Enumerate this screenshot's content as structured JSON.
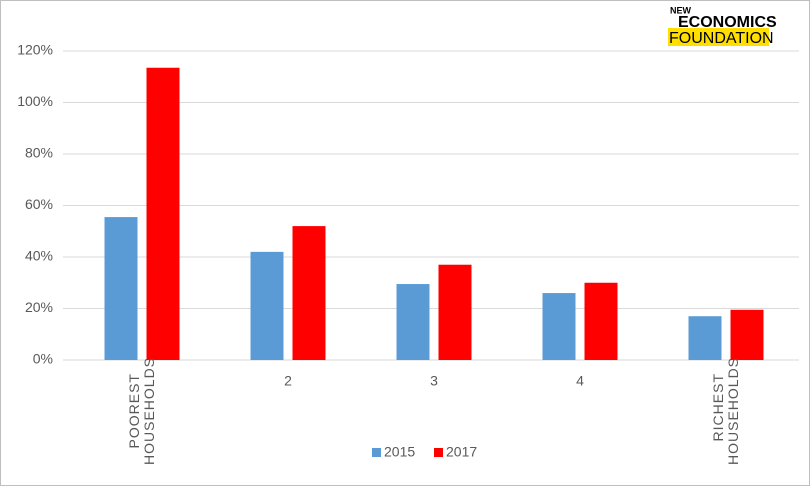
{
  "chart_data": {
    "type": "bar",
    "categories": [
      "POOREST HOUSEHOLDS",
      "2",
      "3",
      "4",
      "RICHEST HOUSEHOLDS"
    ],
    "series": [
      {
        "name": "2015",
        "color": "#5b9bd5",
        "values": [
          55.5,
          42,
          29.5,
          26,
          17
        ]
      },
      {
        "name": "2017",
        "color": "#ff0000",
        "values": [
          113.5,
          52,
          37,
          30,
          19.5
        ]
      }
    ],
    "ylim": [
      0,
      120
    ],
    "yticks": [
      {
        "value": 0,
        "label": "0%"
      },
      {
        "value": 20,
        "label": "20%"
      },
      {
        "value": 40,
        "label": "40%"
      },
      {
        "value": 60,
        "label": "60%"
      },
      {
        "value": 80,
        "label": "80%"
      },
      {
        "value": 100,
        "label": "100%"
      },
      {
        "value": 120,
        "label": "120%"
      }
    ],
    "grid": true
  },
  "logo": {
    "line1": "NEW",
    "line2": "ECONOMICS",
    "line3": "FOUNDATION"
  }
}
